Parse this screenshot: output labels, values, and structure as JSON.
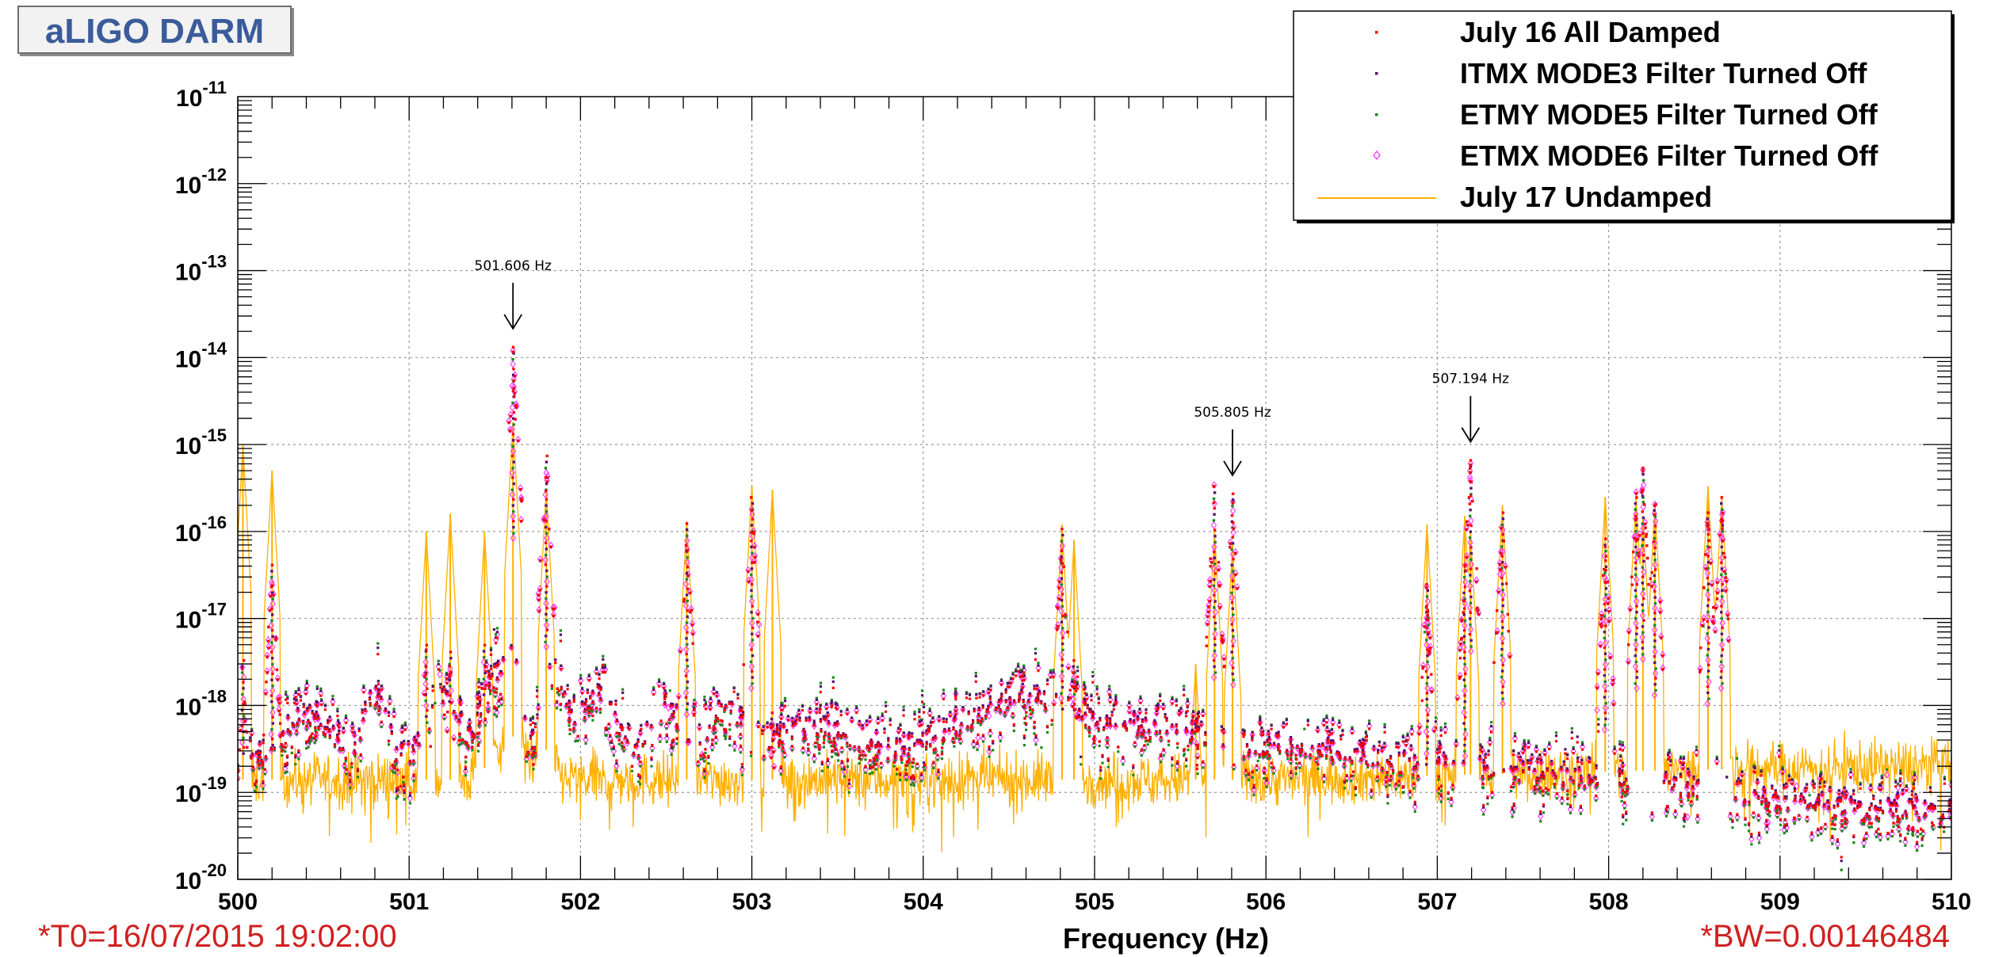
{
  "title_box": "aLIGO DARM",
  "footer": {
    "t0": "*T0=16/07/2015 19:02:00",
    "bw": "*BW=0.00146484"
  },
  "chart_data": {
    "type": "scatter",
    "xlabel": "Frequency (Hz)",
    "xlim": [
      500,
      510
    ],
    "x_ticks": [
      500,
      501,
      502,
      503,
      504,
      505,
      506,
      507,
      508,
      509,
      510
    ],
    "y_scale": "log",
    "ylim": [
      1e-20,
      1e-11
    ],
    "y_tick_exponents": [
      -11,
      -12,
      -13,
      -14,
      -15,
      -16,
      -17,
      -18,
      -19,
      -20
    ],
    "y_tick_base": "10",
    "grid": true,
    "legend_position": "top-right",
    "series": [
      {
        "name": "July 16 All Damped",
        "marker": "dot",
        "color": "#ff0000"
      },
      {
        "name": "ITMX MODE3 Filter Turned Off",
        "marker": "dot",
        "color": "#5a0f6e"
      },
      {
        "name": "ETMY MODE5 Filter Turned Off",
        "marker": "dot",
        "color": "#1a8a1a"
      },
      {
        "name": "ETMX MODE6 Filter Turned Off",
        "marker": "diamond",
        "color": "#ff33ff"
      },
      {
        "name": "July 17 Undamped",
        "marker": "line",
        "color": "#ffb000"
      }
    ],
    "peaks": [
      {
        "freq": 500.03,
        "undamped": 1e-15,
        "damped": 4e-18
      },
      {
        "freq": 500.2,
        "undamped": 5e-16,
        "damped": 5e-17
      },
      {
        "freq": 501.1,
        "undamped": 1e-16,
        "damped": 6e-18
      },
      {
        "freq": 501.24,
        "undamped": 1.6e-16,
        "damped": 5e-18
      },
      {
        "freq": 501.44,
        "undamped": 1e-16,
        "damped": 6e-18
      },
      {
        "freq": 501.606,
        "undamped": 1.8e-15,
        "damped": 1.6e-14
      },
      {
        "freq": 501.8,
        "undamped": 3e-16,
        "damped": 9e-16
      },
      {
        "freq": 502.62,
        "undamped": 1.3e-16,
        "damped": 1.5e-16
      },
      {
        "freq": 503.0,
        "undamped": 3.3e-16,
        "damped": 3e-16
      },
      {
        "freq": 503.12,
        "undamped": 3e-16,
        "damped": 1e-18
      },
      {
        "freq": 504.81,
        "undamped": 1.2e-16,
        "damped": 1.3e-16
      },
      {
        "freq": 504.88,
        "undamped": 8e-17,
        "damped": 4e-18
      },
      {
        "freq": 505.59,
        "undamped": 3e-18,
        "damped": 8e-19
      },
      {
        "freq": 505.7,
        "undamped": 1e-16,
        "damped": 4e-16
      },
      {
        "freq": 505.805,
        "undamped": 7e-17,
        "damped": 3.3e-16
      },
      {
        "freq": 506.94,
        "undamped": 1.2e-16,
        "damped": 3e-17
      },
      {
        "freq": 507.16,
        "undamped": 1.5e-16,
        "damped": 5e-17
      },
      {
        "freq": 507.194,
        "undamped": 1e-16,
        "damped": 8e-16
      },
      {
        "freq": 507.38,
        "undamped": 2e-16,
        "damped": 2e-16
      },
      {
        "freq": 507.98,
        "undamped": 2.5e-16,
        "damped": 1e-16
      },
      {
        "freq": 508.16,
        "undamped": 2.5e-16,
        "damped": 3e-16
      },
      {
        "freq": 508.2,
        "undamped": 1.5e-16,
        "damped": 6.5e-16
      },
      {
        "freq": 508.27,
        "undamped": 2e-16,
        "damped": 2.5e-16
      },
      {
        "freq": 508.58,
        "undamped": 3.3e-16,
        "damped": 2e-16
      },
      {
        "freq": 508.66,
        "undamped": 2.5e-16,
        "damped": 3e-16
      }
    ],
    "annotations": [
      {
        "text": "501.606 Hz",
        "freq": 501.606
      },
      {
        "text": "505.805 Hz",
        "freq": 505.805
      },
      {
        "text": "507.194 Hz",
        "freq": 507.194
      }
    ]
  }
}
